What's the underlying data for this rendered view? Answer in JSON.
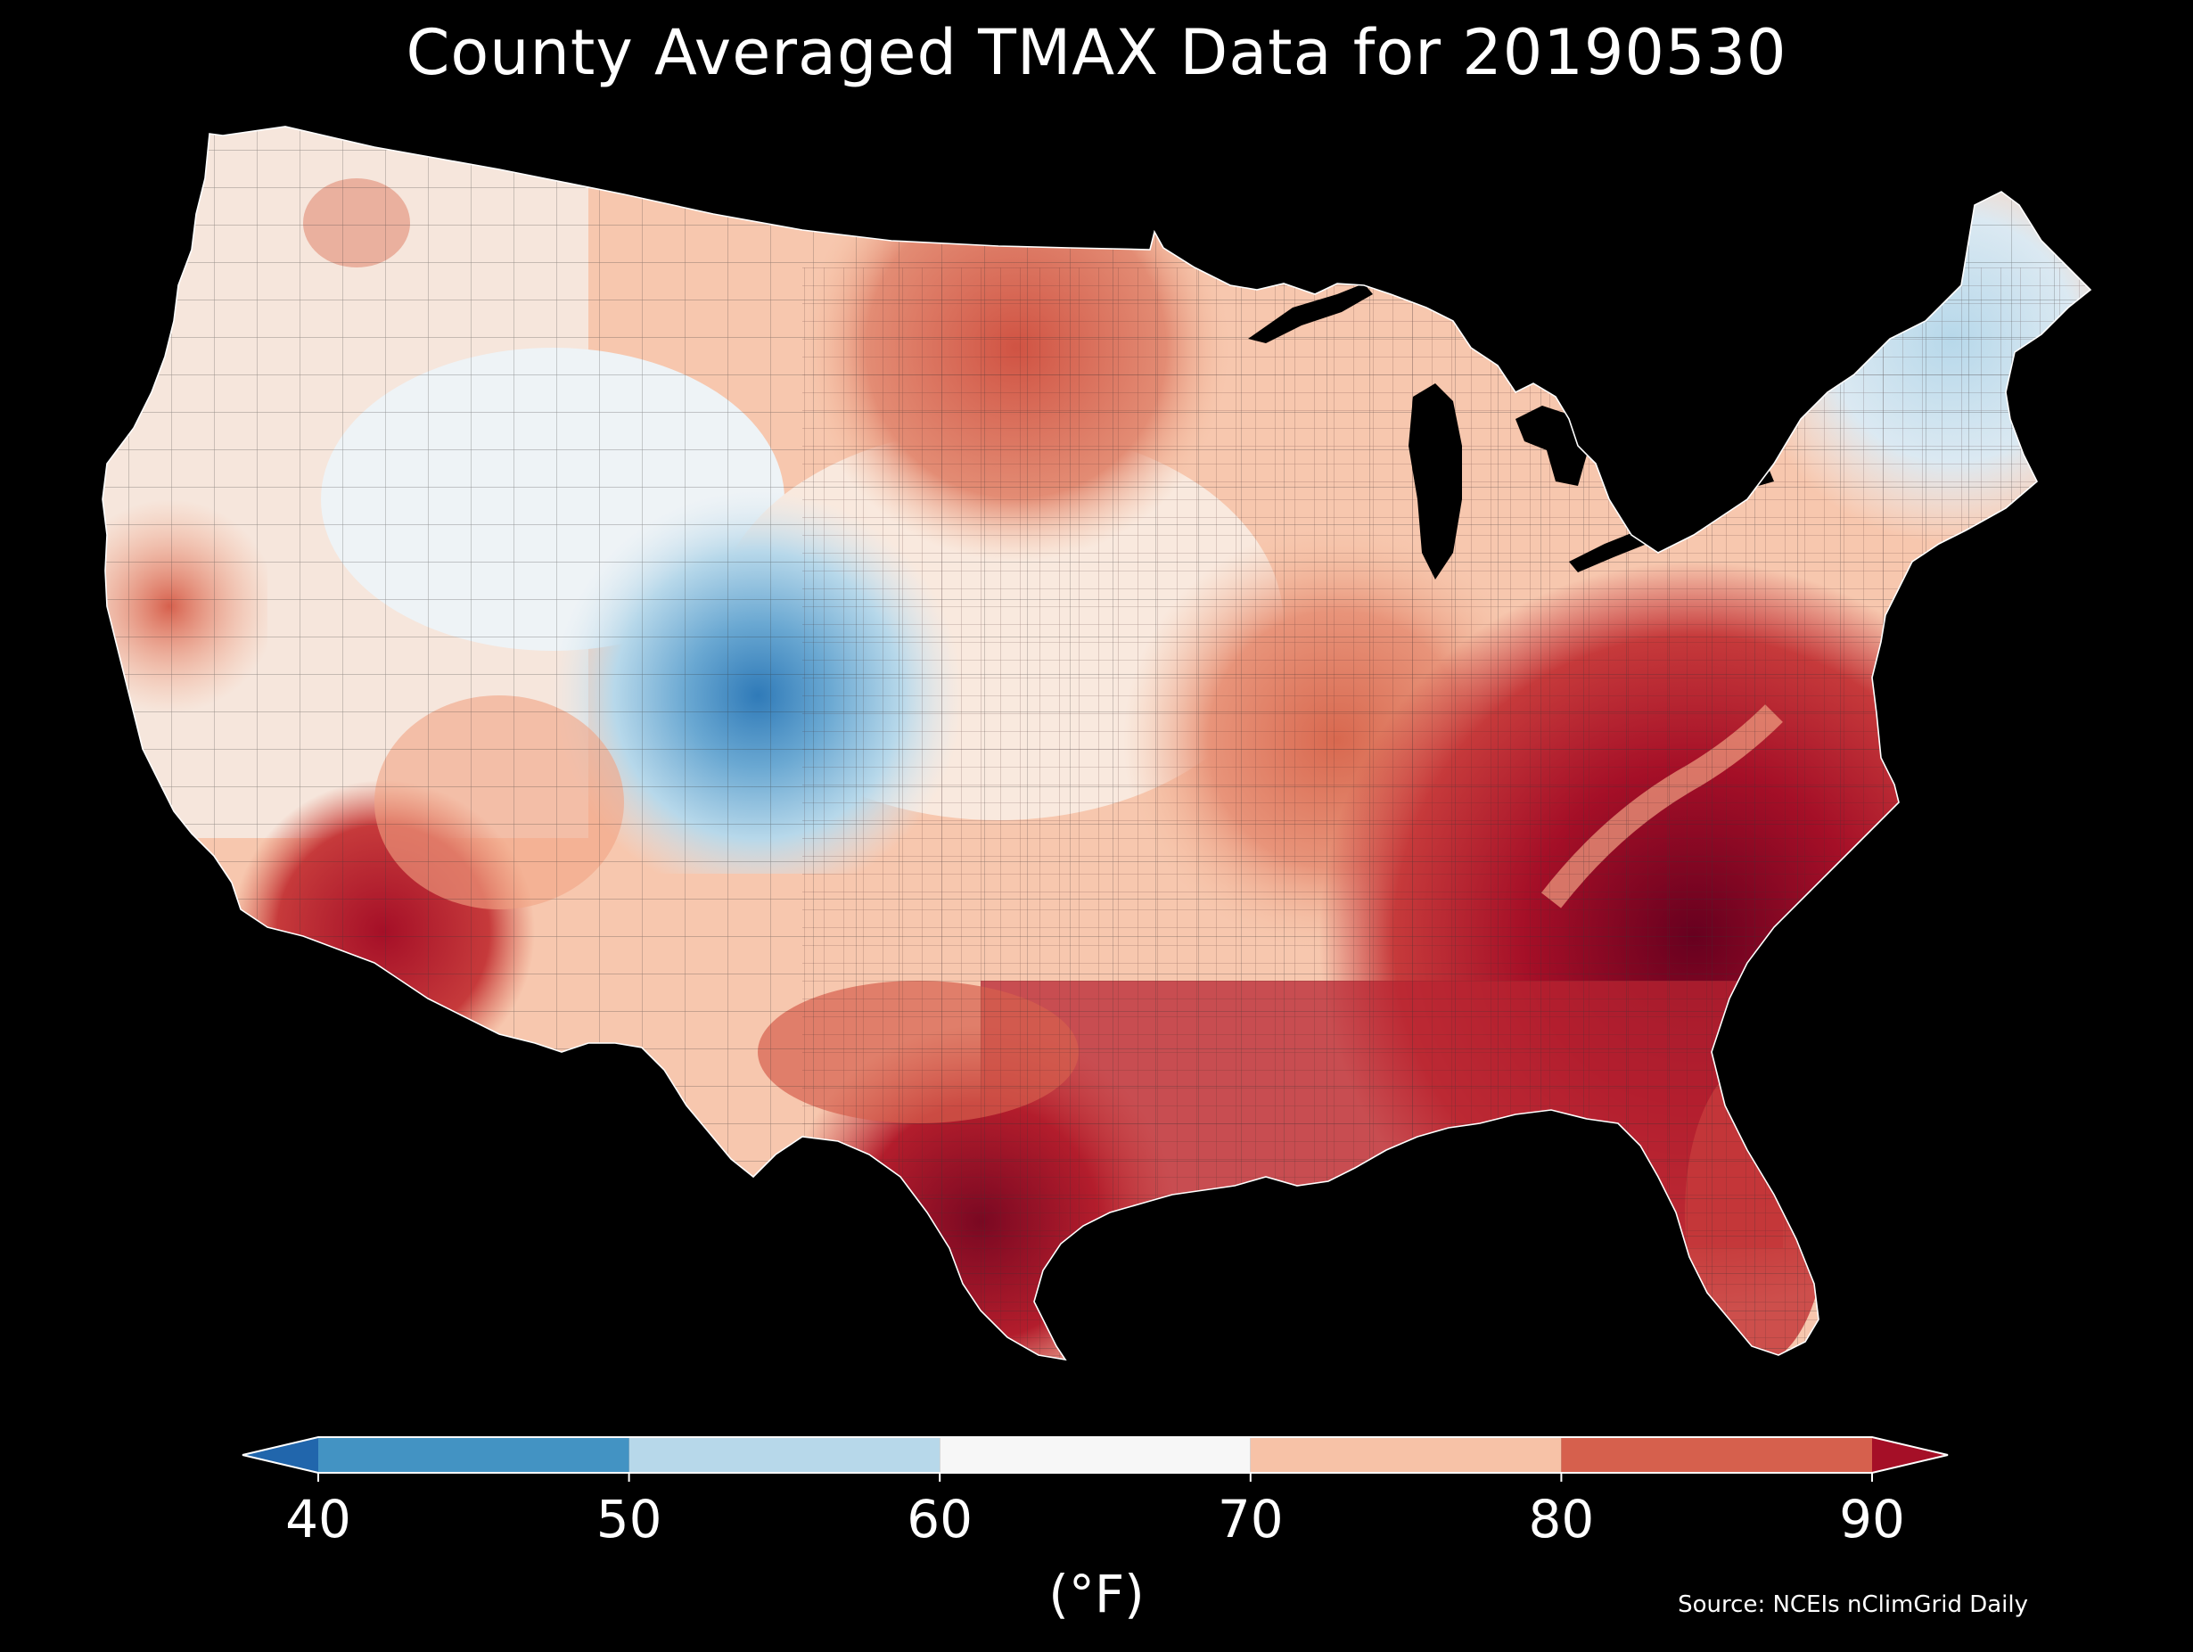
{
  "title": "County Averaged TMAX Data for 20190530",
  "colorbar": {
    "unit_label": "(°F)",
    "ticks": [
      "40",
      "50",
      "60",
      "70",
      "80",
      "90"
    ],
    "bins": [
      {
        "from": 40,
        "to": 50,
        "color": "#4393c3"
      },
      {
        "from": 50,
        "to": 60,
        "color": "#b7d8ea"
      },
      {
        "from": 60,
        "to": 70,
        "color": "#f7f7f7"
      },
      {
        "from": 70,
        "to": 80,
        "color": "#f7c2a7"
      },
      {
        "from": 80,
        "to": 90,
        "color": "#d6604d"
      }
    ],
    "under_color": "#2166ac",
    "over_color": "#a50f27",
    "extend": "both"
  },
  "source": "Source: NCEIs nClimGrid Daily",
  "map": {
    "region": "Contiguous United States counties",
    "variable": "TMAX",
    "background": "#000000",
    "regions_shown": [
      {
        "name": "Northwest coast",
        "color": "#f4e5dc"
      },
      {
        "name": "Northern Rockies",
        "color": "#f5c0a3"
      },
      {
        "name": "Colorado / Utah high terrain",
        "color": "#a8cde4"
      },
      {
        "name": "Colorado Front Range",
        "color": "#3f88c0"
      },
      {
        "name": "Great Plains",
        "color": "#fbe0d0"
      },
      {
        "name": "Northern Plains",
        "color": "#de7260"
      },
      {
        "name": "Desert Southwest",
        "color": "#b31d2c"
      },
      {
        "name": "Gulf coast / Texas",
        "color": "#b82431"
      },
      {
        "name": "Southeast",
        "color": "#8a0c22"
      },
      {
        "name": "Ohio Valley",
        "color": "#e38c74"
      },
      {
        "name": "Northeast / New England",
        "color": "#dbe9f2"
      },
      {
        "name": "Florida",
        "color": "#c63a3b"
      }
    ]
  }
}
